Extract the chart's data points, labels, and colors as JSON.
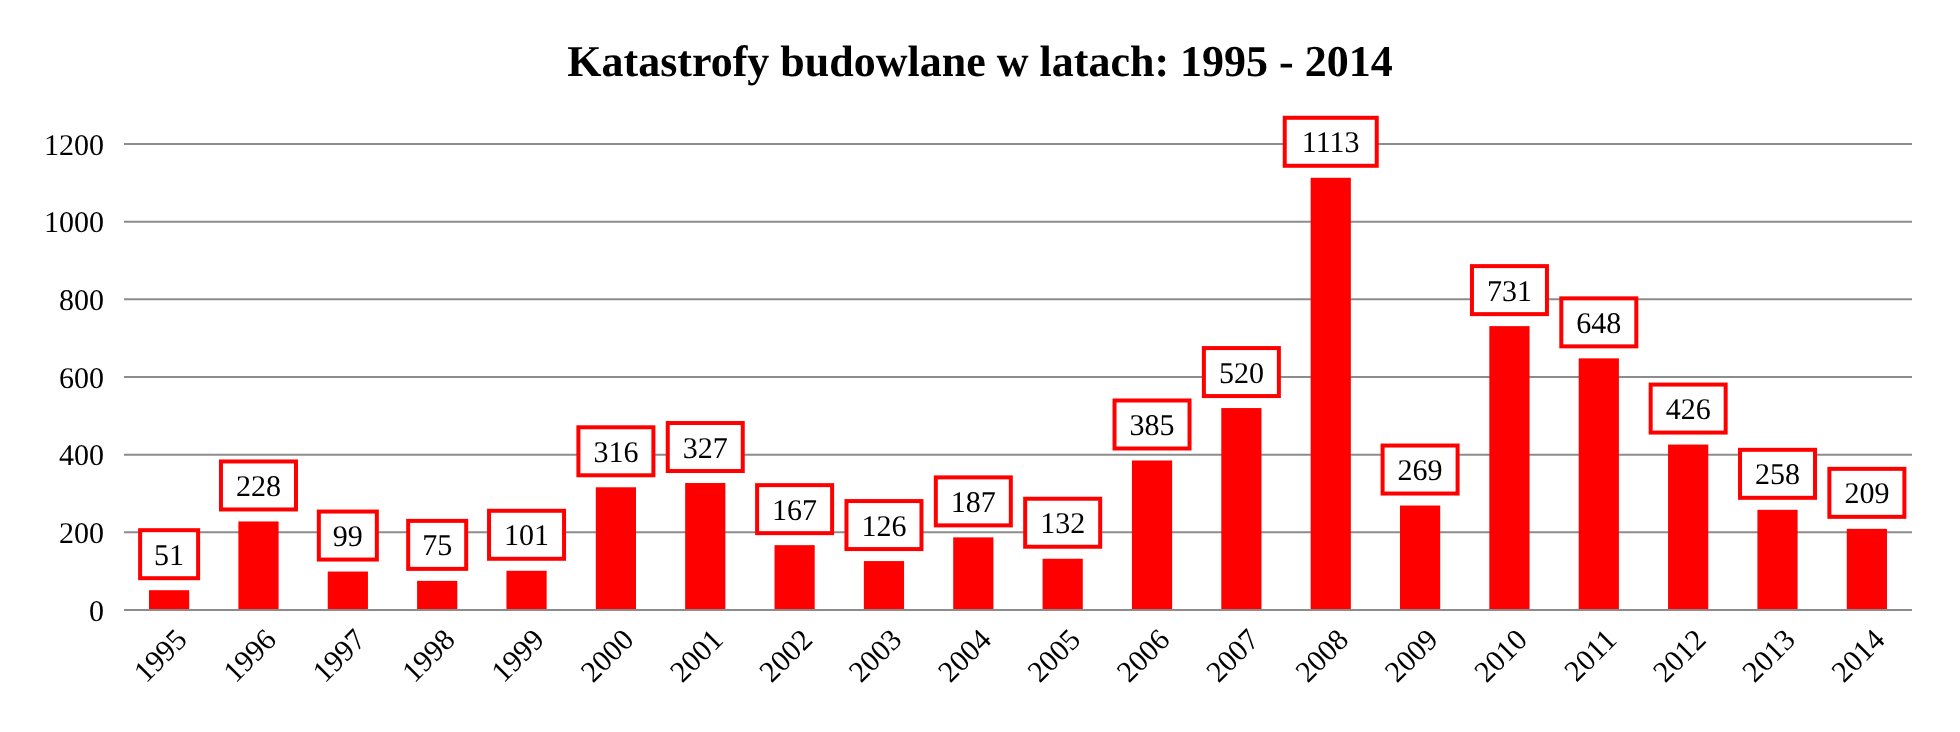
{
  "chart_data": {
    "type": "bar",
    "title": "Katastrofy budowlane w latach: 1995 - 2014",
    "categories": [
      "1995",
      "1996",
      "1997",
      "1998",
      "1999",
      "2000",
      "2001",
      "2002",
      "2003",
      "2004",
      "2005",
      "2006",
      "2007",
      "2008",
      "2009",
      "2010",
      "2011",
      "2012",
      "2013",
      "2014"
    ],
    "values": [
      51,
      228,
      99,
      75,
      101,
      316,
      327,
      167,
      126,
      187,
      132,
      385,
      520,
      1113,
      269,
      731,
      648,
      426,
      258,
      209
    ],
    "color": "#ff0000",
    "ylim": [
      0,
      1200
    ],
    "yticks": [
      0,
      200,
      400,
      600,
      800,
      1000,
      1200
    ],
    "grid": "y",
    "data_labels": true
  }
}
